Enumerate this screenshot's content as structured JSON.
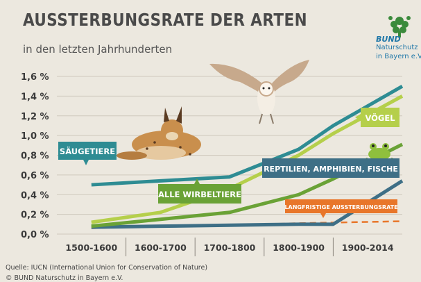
{
  "header": {
    "title": "AUSSTERBUNGSRATE DER ARTEN",
    "subtitle": "in den letzten Jahrhunderten"
  },
  "logo": {
    "name": "BUND",
    "line1": "Naturschutz",
    "line2": "in Bayern e.V."
  },
  "footer": {
    "source": "Quelle: IUCN (International Union for Conservation of Nature)",
    "copyright": "© BUND Naturschutz in Bayern e.V."
  },
  "colors": {
    "background": "#ece8df",
    "saeugetiere": "#2e8c93",
    "voegel": "#b5cf4b",
    "alle_wirbeltiere": "#6aa236",
    "reptilien": "#3e6f86",
    "langfristig": "#e8762a",
    "axis_text": "#3a3a3a",
    "title": "#4a4a4a",
    "logo": "#1f77a8"
  },
  "illustrations": [
    "lynx-illustration",
    "owl-illustration",
    "frog-illustration"
  ],
  "chart_data": {
    "type": "line",
    "title": "AUSSTERBUNGSRATE DER ARTEN",
    "subtitle": "in den letzten Jahrhunderten",
    "categories": [
      "1500-1600",
      "1600-1700",
      "1700-1800",
      "1800-1900",
      "1900-2014"
    ],
    "y_ticks": [
      "1,6 %",
      "1,4 %",
      "1,2 %",
      "1,0 %",
      "0,8 %",
      "0,6 %",
      "0,4 %",
      "0,2 %",
      "0,0 %"
    ],
    "ylim": [
      0,
      1.6
    ],
    "grid": true,
    "legend": "inline labels",
    "series": [
      {
        "name": "SÄUGETIERE",
        "color": "#2e8c93",
        "x": [
          0,
          1,
          2,
          3,
          3.5,
          4.5
        ],
        "y": [
          0.5,
          0.54,
          0.58,
          0.86,
          1.1,
          1.5
        ]
      },
      {
        "name": "VÖGEL",
        "color": "#b5cf4b",
        "x": [
          0,
          1,
          2,
          3,
          3.5,
          4.5
        ],
        "y": [
          0.12,
          0.22,
          0.46,
          0.8,
          1.02,
          1.4
        ]
      },
      {
        "name": "ALLE WIRBELTIERE",
        "color": "#6aa236",
        "x": [
          0,
          1,
          2,
          3,
          3.5,
          4.5
        ],
        "y": [
          0.08,
          0.15,
          0.22,
          0.4,
          0.56,
          0.91
        ]
      },
      {
        "name": "REPTILIEN, AMPHIBIEN, FISCHE",
        "color": "#3e6f86",
        "x": [
          0,
          1,
          2,
          3,
          3.5,
          4.5
        ],
        "y": [
          0.07,
          0.08,
          0.09,
          0.1,
          0.1,
          0.54
        ]
      },
      {
        "name": "LANGFRISTIGE AUSSTERBUNGSRATE",
        "color": "#e8762a",
        "dashed": true,
        "x": [
          0,
          1,
          2,
          3,
          4.5
        ],
        "y": [
          0.06,
          0.08,
          0.09,
          0.11,
          0.13
        ]
      }
    ],
    "labels": [
      {
        "text": "SÄUGETIERE",
        "series": 0
      },
      {
        "text": "VÖGEL",
        "series": 1
      },
      {
        "text": "ALLE WIRBELTIERE",
        "series": 2
      },
      {
        "text": "REPTILIEN, AMPHIBIEN, FISCHE",
        "series": 3
      },
      {
        "text": "LANGFRISTIGE AUSSTERBUNGSRATE",
        "series": 4
      }
    ]
  }
}
